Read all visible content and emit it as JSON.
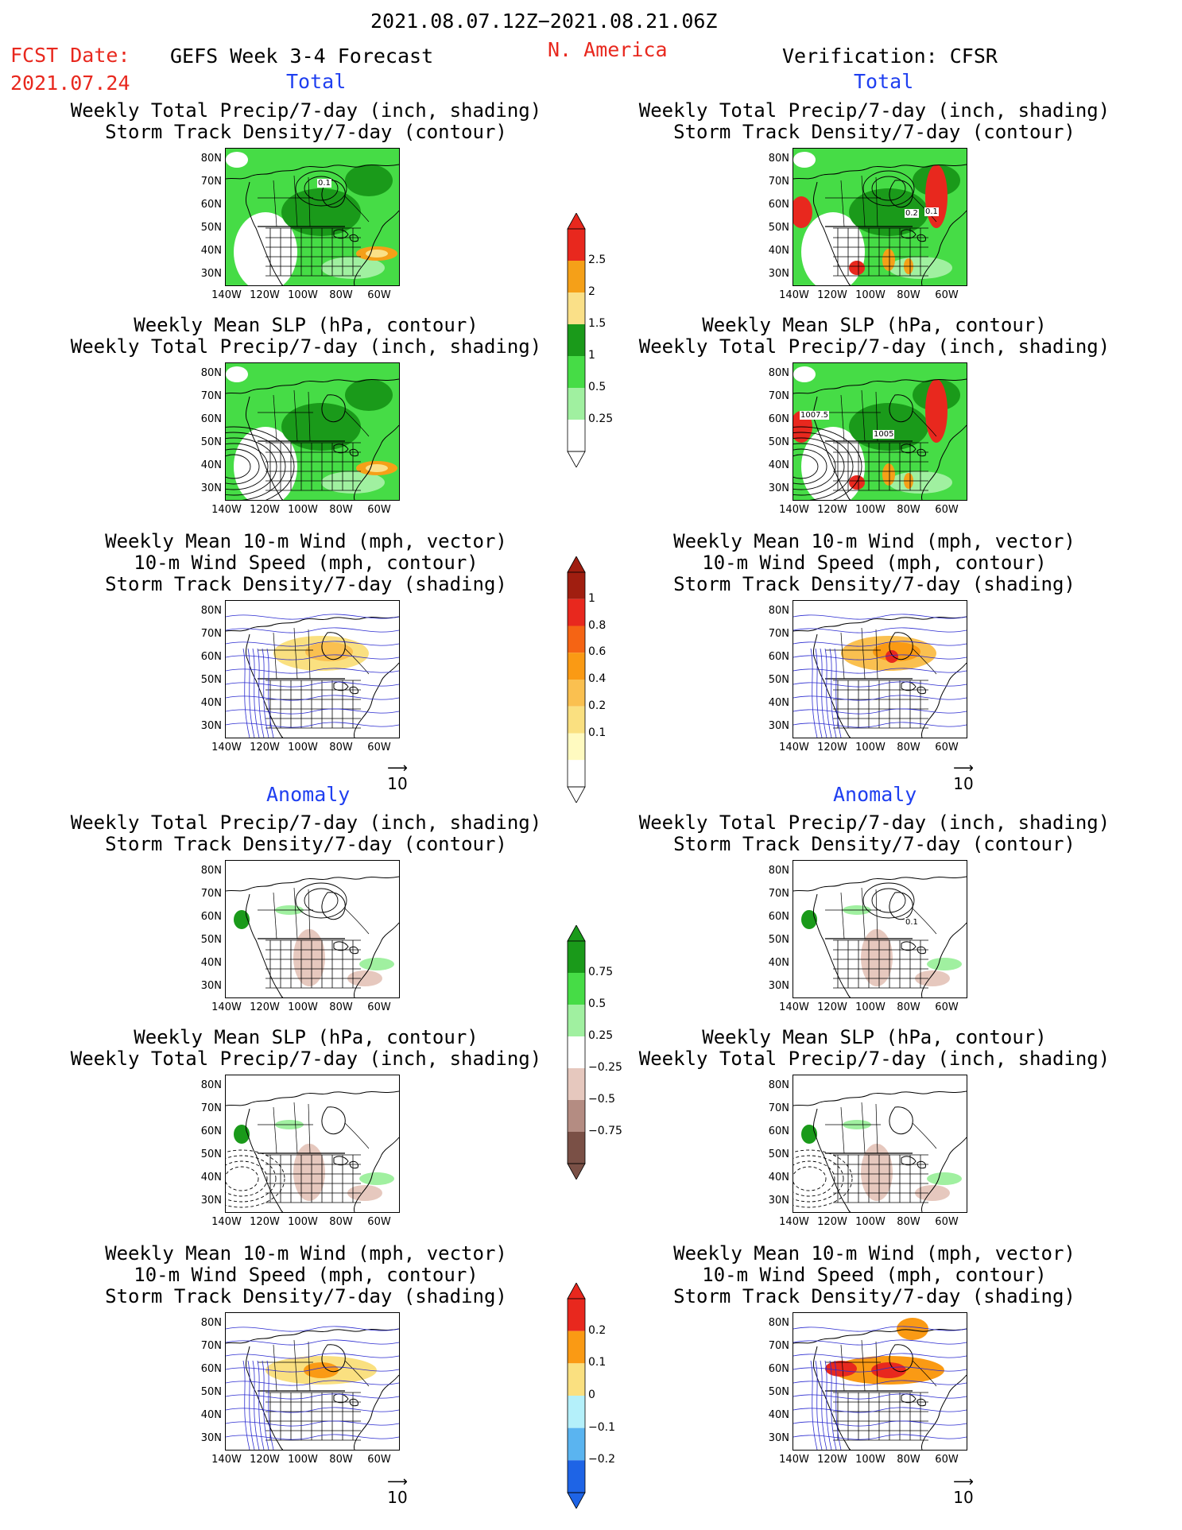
{
  "header": {
    "period": "2021.08.07.12Z−2021.08.21.06Z",
    "fcst_date_label": "FCST Date:",
    "fcst_date_value": "2021.07.24",
    "model": "GEFS Week 3-4 Forecast",
    "region": "N. America",
    "verification": "Verification: CFSR"
  },
  "sections": {
    "total": "Total",
    "anomaly": "Anomaly"
  },
  "titles": {
    "precip_track": [
      "Weekly Total Precip/7-day (inch, shading)",
      "Storm Track Density/7-day (contour)"
    ],
    "slp_precip": [
      "Weekly Mean SLP (hPa, contour)",
      "Weekly Total Precip/7-day (inch, shading)"
    ],
    "wind_track": [
      "Weekly Mean 10-m Wind (mph, vector)",
      "10-m Wind Speed (mph, contour)",
      "Storm Track Density/7-day (shading)"
    ]
  },
  "axes": {
    "lat": [
      "80N",
      "70N",
      "60N",
      "50N",
      "40N",
      "30N"
    ],
    "lon": [
      "140W",
      "120W",
      "100W",
      "80W",
      "60W"
    ]
  },
  "vector_ref": "10",
  "colorbars": {
    "precip_total": {
      "levels": [
        "2.5",
        "2",
        "1.5",
        "1",
        "0.5",
        "0.25"
      ],
      "colors": [
        "#e8281e",
        "#f5a018",
        "#fae088",
        "#1a9a1a",
        "#46dc46",
        "#a0f0a0",
        "#ffffff"
      ]
    },
    "track_total": {
      "levels": [
        "1",
        "0.8",
        "0.6",
        "0.4",
        "0.2",
        "0.1"
      ],
      "colors": [
        "#a01e10",
        "#e8281e",
        "#f56414",
        "#fa9a14",
        "#fac050",
        "#fae080",
        "#fffac0",
        "#ffffff"
      ]
    },
    "precip_anom": {
      "levels": [
        "0.75",
        "0.5",
        "0.25",
        "−0.25",
        "−0.5",
        "−0.75"
      ],
      "colors": [
        "#1a9a1a",
        "#46dc46",
        "#a0f0a0",
        "#ffffff",
        "#e6c8be",
        "#b48c82",
        "#7a5046"
      ]
    },
    "track_anom": {
      "levels": [
        "0.2",
        "0.1",
        "0",
        "−0.1",
        "−0.2"
      ],
      "colors": [
        "#e8281e",
        "#fa9a14",
        "#fae080",
        "#b4f0fa",
        "#5ab4f0",
        "#1e64e6"
      ]
    }
  },
  "contour_labels": {
    "p1l": [
      "0.1"
    ],
    "p1r": [
      "0.2",
      "0.1"
    ],
    "p2r": [
      "1007.5",
      "1005"
    ],
    "p4r": [
      "0.1"
    ]
  }
}
